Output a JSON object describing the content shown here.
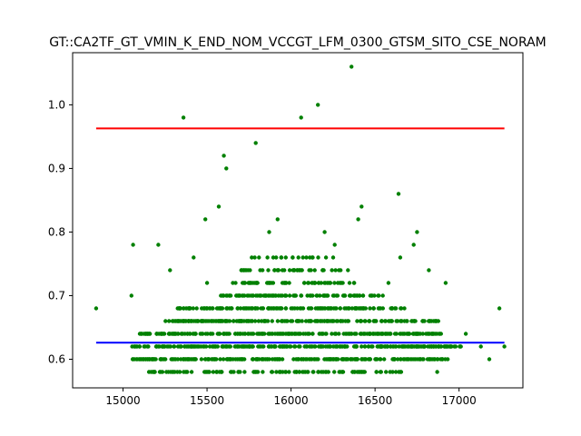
{
  "chart_data": {
    "type": "scatter",
    "title": "GT::CA2TF_GT_VMIN_K_END_NOM_VCCGT_LFM_0300_GTSM_SITO_CSE_NORAM",
    "xlabel": "",
    "ylabel": "",
    "xlim": [
      14700,
      17380
    ],
    "ylim": [
      0.555,
      1.082
    ],
    "xticks": [
      15000,
      15500,
      16000,
      16500,
      17000
    ],
    "yticks": [
      0.6,
      0.7,
      0.8,
      0.9,
      1.0
    ],
    "xtick_labels": [
      "15000",
      "15500",
      "16000",
      "16500",
      "17000"
    ],
    "ytick_labels": [
      "0.6",
      "0.7",
      "0.8",
      "0.9",
      "1.0"
    ],
    "grid": false,
    "marker_color": "#008000",
    "reference_lines": [
      {
        "y": 0.963,
        "x": [
          14840,
          17270
        ],
        "color": "#ff0000"
      },
      {
        "y": 0.626,
        "x": [
          14840,
          17270
        ],
        "color": "#0000ff"
      }
    ],
    "outliers": [
      {
        "x": 14840,
        "y": 0.68
      },
      {
        "x": 15060,
        "y": 0.78
      },
      {
        "x": 15210,
        "y": 0.78
      },
      {
        "x": 15360,
        "y": 0.98
      },
      {
        "x": 15490,
        "y": 0.82
      },
      {
        "x": 15570,
        "y": 0.84
      },
      {
        "x": 15600,
        "y": 0.92
      },
      {
        "x": 15615,
        "y": 0.9
      },
      {
        "x": 15790,
        "y": 0.94
      },
      {
        "x": 15920,
        "y": 0.82
      },
      {
        "x": 16060,
        "y": 0.98
      },
      {
        "x": 16160,
        "y": 1.0
      },
      {
        "x": 16360,
        "y": 1.06
      },
      {
        "x": 16400,
        "y": 0.82
      },
      {
        "x": 16420,
        "y": 0.84
      },
      {
        "x": 16640,
        "y": 0.86
      },
      {
        "x": 16730,
        "y": 0.78
      },
      {
        "x": 16650,
        "y": 0.76
      },
      {
        "x": 17240,
        "y": 0.68
      },
      {
        "x": 17270,
        "y": 0.62
      },
      {
        "x": 17180,
        "y": 0.6
      },
      {
        "x": 15050,
        "y": 0.7
      },
      {
        "x": 15280,
        "y": 0.74
      },
      {
        "x": 15420,
        "y": 0.76
      },
      {
        "x": 16820,
        "y": 0.74
      },
      {
        "x": 16920,
        "y": 0.72
      },
      {
        "x": 16580,
        "y": 0.72
      },
      {
        "x": 16200,
        "y": 0.8
      },
      {
        "x": 16260,
        "y": 0.78
      },
      {
        "x": 15870,
        "y": 0.8
      },
      {
        "x": 15500,
        "y": 0.72
      },
      {
        "x": 17040,
        "y": 0.64
      },
      {
        "x": 17130,
        "y": 0.62
      },
      {
        "x": 16900,
        "y": 0.6
      },
      {
        "x": 16870,
        "y": 0.58
      },
      {
        "x": 15180,
        "y": 0.58
      },
      {
        "x": 15100,
        "y": 0.64
      },
      {
        "x": 15080,
        "y": 0.6
      },
      {
        "x": 16750,
        "y": 0.8
      },
      {
        "x": 16700,
        "y": 0.64
      }
    ],
    "dense_bands": [
      {
        "y": 0.58,
        "x_min": 15150,
        "x_max": 16660,
        "count": 110
      },
      {
        "y": 0.6,
        "x_min": 15050,
        "x_max": 16950,
        "count": 230
      },
      {
        "y": 0.62,
        "x_min": 15050,
        "x_max": 17020,
        "count": 260
      },
      {
        "y": 0.64,
        "x_min": 15100,
        "x_max": 16900,
        "count": 240
      },
      {
        "y": 0.66,
        "x_min": 15250,
        "x_max": 16880,
        "count": 200
      },
      {
        "y": 0.68,
        "x_min": 15300,
        "x_max": 16680,
        "count": 150
      },
      {
        "y": 0.7,
        "x_min": 15580,
        "x_max": 16550,
        "count": 95
      },
      {
        "y": 0.72,
        "x_min": 15620,
        "x_max": 16400,
        "count": 60
      },
      {
        "y": 0.74,
        "x_min": 15700,
        "x_max": 16350,
        "count": 40
      },
      {
        "y": 0.76,
        "x_min": 15750,
        "x_max": 16280,
        "count": 20
      }
    ]
  }
}
